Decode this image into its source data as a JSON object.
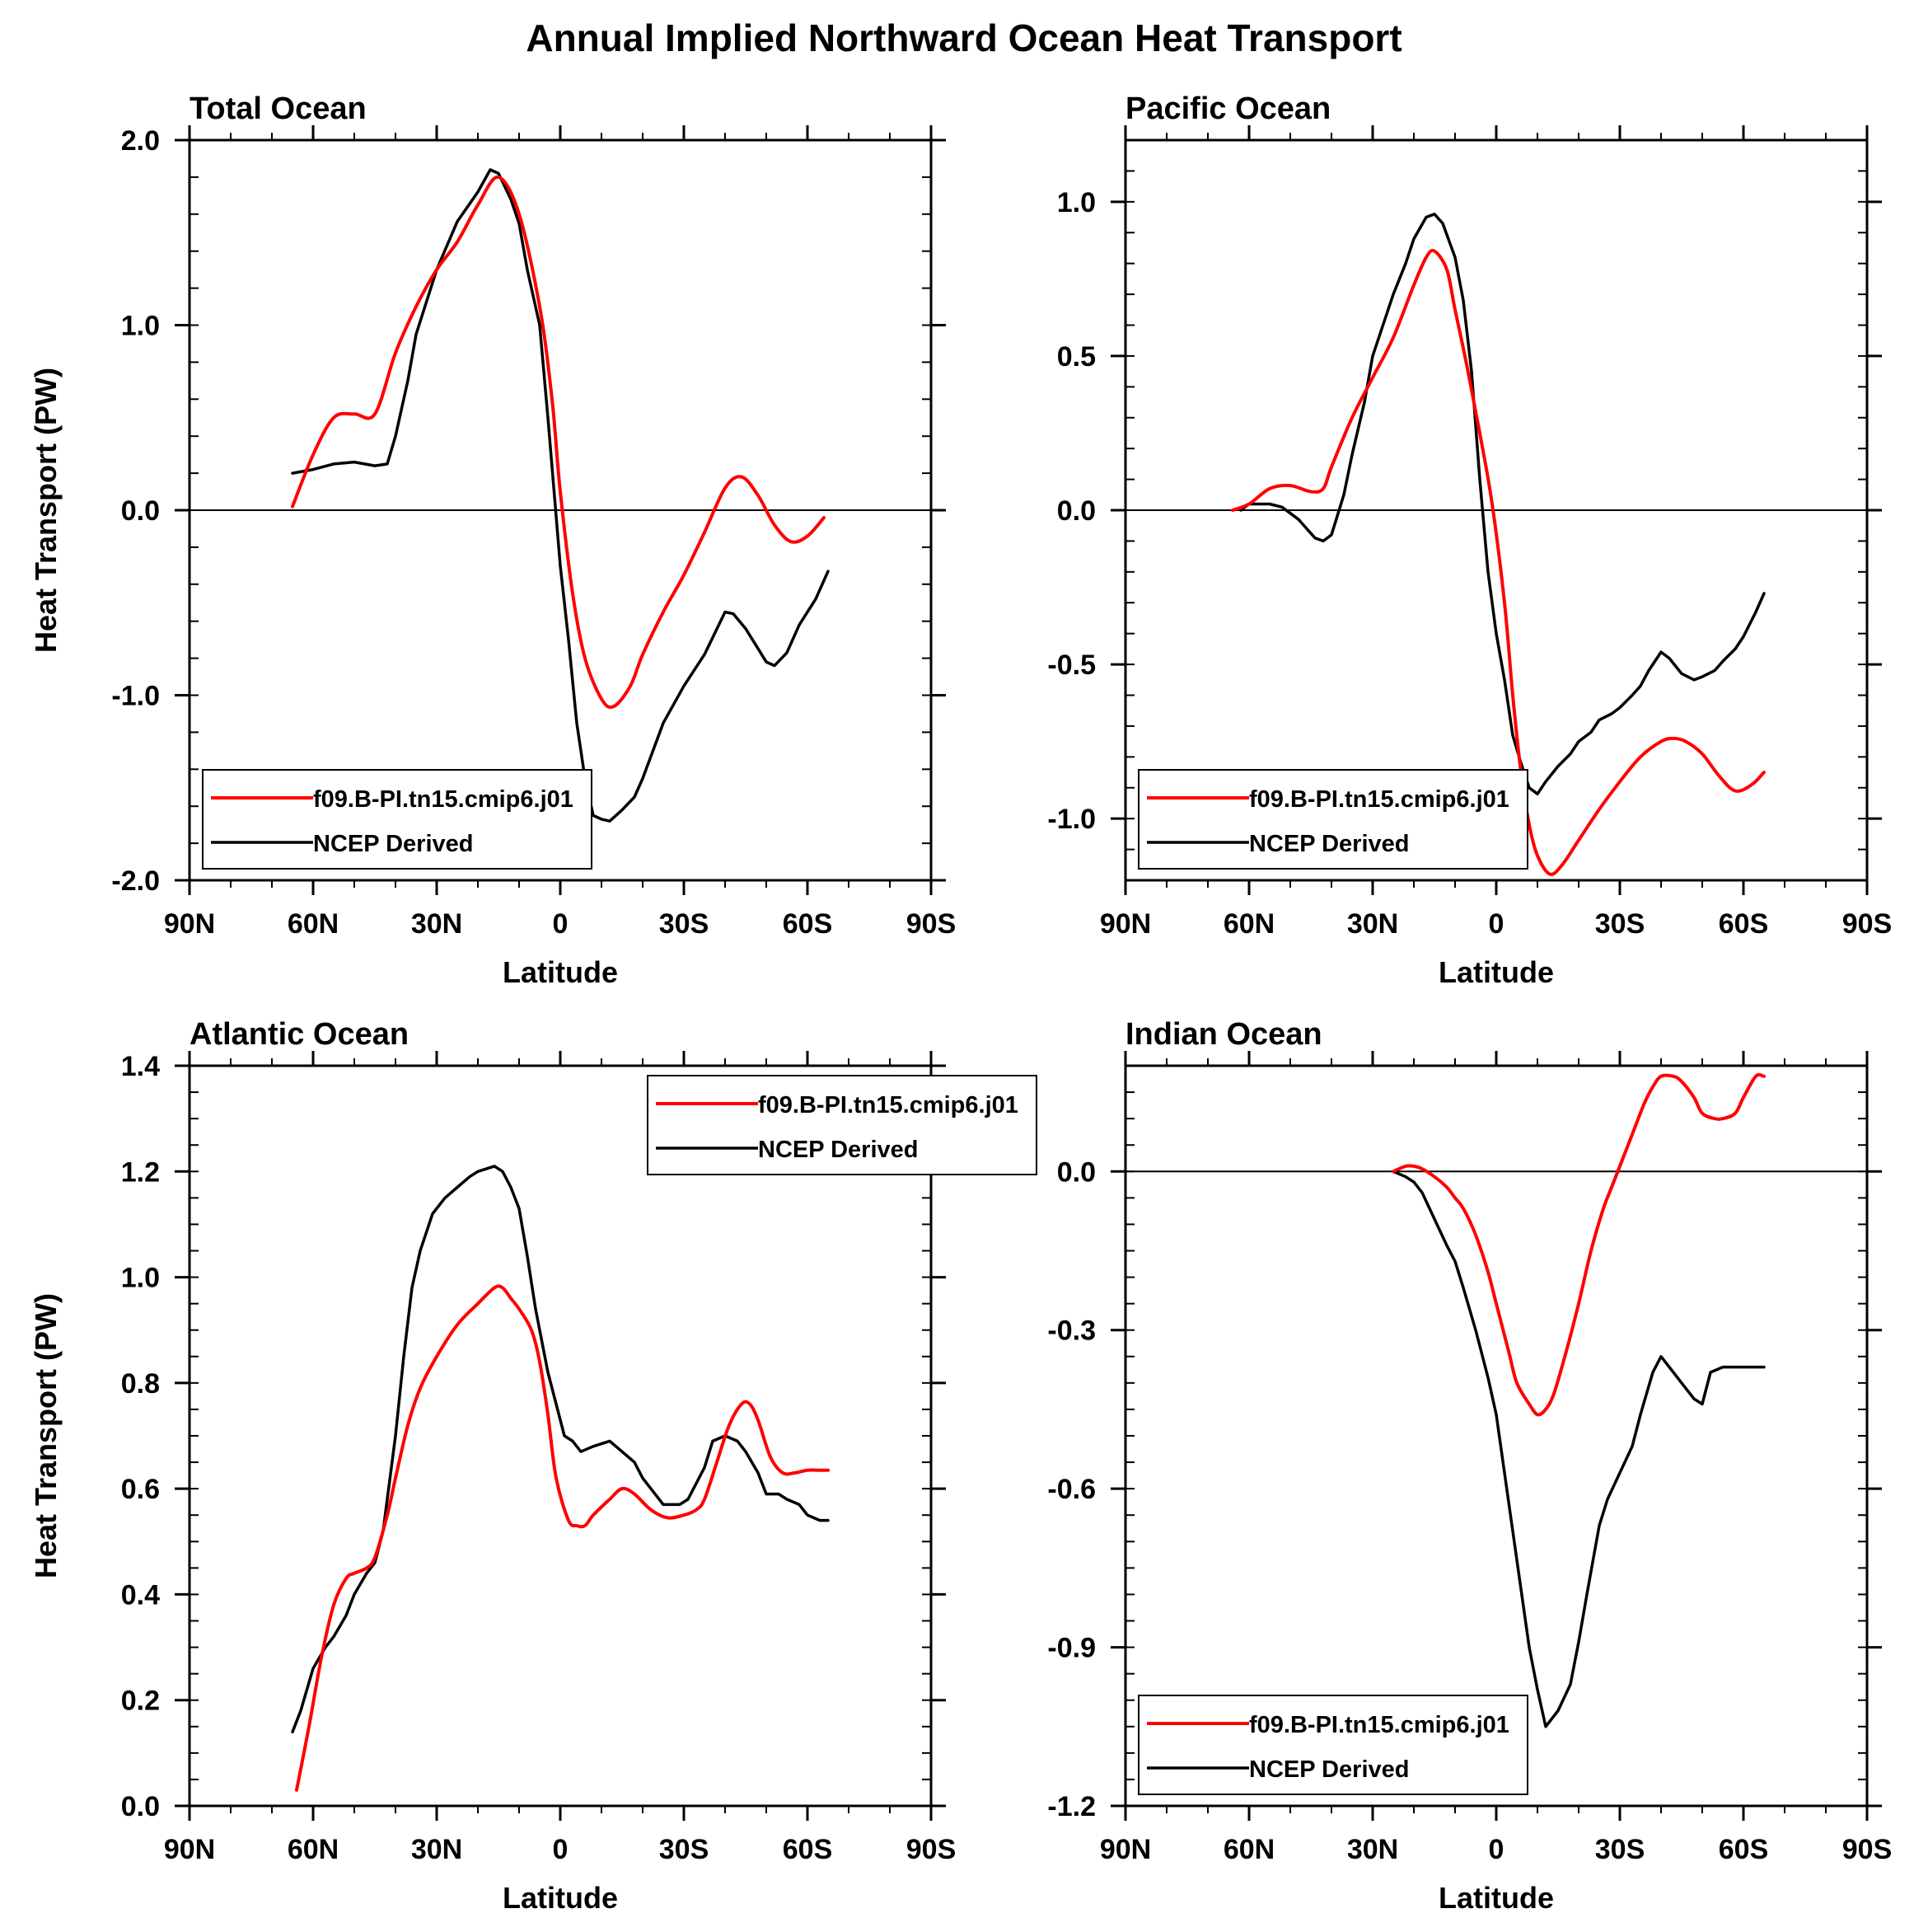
{
  "title": "Annual Implied Northward Ocean Heat Transport",
  "colors": {
    "model": "#ff0000",
    "obs": "#000000",
    "background": "#ffffff"
  },
  "chart_data": [
    {
      "type": "line",
      "title": "Total Ocean",
      "xlabel": "Latitude",
      "ylabel": "Heat Transport (PW)",
      "xlim": [
        90,
        -90
      ],
      "x_ticks": [
        90,
        60,
        30,
        0,
        -30,
        -60,
        -90
      ],
      "x_tick_labels": [
        "90N",
        "60N",
        "30N",
        "0",
        "30S",
        "60S",
        "90S"
      ],
      "ylim": [
        -2.0,
        2.0
      ],
      "y_ticks": [
        -2.0,
        -1.0,
        0.0,
        1.0,
        2.0
      ],
      "y_tick_labels": [
        "-2.0",
        "-1.0",
        "0.0",
        "1.0",
        "2.0"
      ],
      "y_minor_step": 0.2,
      "zero_line": true,
      "legend": {
        "position": "bottom-left"
      },
      "series": [
        {
          "name": "f09.B-PI.tn15.cmip6.j01",
          "color": "#ff0000",
          "smooth": true,
          "x": [
            65,
            60,
            55,
            50,
            45,
            40,
            35,
            30,
            25,
            20,
            15,
            10,
            5,
            2,
            0,
            -3,
            -6,
            -10,
            -13,
            -17,
            -20,
            -25,
            -30,
            -35,
            -40,
            -44,
            -48,
            -52,
            -56,
            -60,
            -64
          ],
          "y": [
            0.02,
            0.3,
            0.5,
            0.52,
            0.52,
            0.85,
            1.1,
            1.3,
            1.45,
            1.65,
            1.8,
            1.6,
            1.1,
            0.6,
            0.1,
            -0.45,
            -0.8,
            -1.02,
            -1.06,
            -0.95,
            -0.78,
            -0.55,
            -0.35,
            -0.12,
            0.12,
            0.18,
            0.08,
            -0.08,
            -0.17,
            -0.14,
            -0.04
          ]
        },
        {
          "name": "NCEP Derived",
          "color": "#000000",
          "smooth": false,
          "x": [
            65,
            60,
            55,
            50,
            45,
            42,
            40,
            37,
            35,
            30,
            25,
            20,
            17,
            15,
            12,
            10,
            8,
            5,
            3,
            0,
            -2,
            -4,
            -6,
            -8,
            -10,
            -12,
            -15,
            -18,
            -20,
            -25,
            -30,
            -35,
            -40,
            -42,
            -45,
            -50,
            -52,
            -55,
            -58,
            -62,
            -65
          ],
          "y": [
            0.2,
            0.22,
            0.25,
            0.26,
            0.24,
            0.25,
            0.4,
            0.7,
            0.95,
            1.3,
            1.56,
            1.72,
            1.84,
            1.82,
            1.68,
            1.55,
            1.3,
            1.0,
            0.5,
            -0.3,
            -0.7,
            -1.15,
            -1.45,
            -1.65,
            -1.67,
            -1.68,
            -1.62,
            -1.55,
            -1.45,
            -1.15,
            -0.95,
            -0.78,
            -0.55,
            -0.56,
            -0.64,
            -0.82,
            -0.84,
            -0.77,
            -0.62,
            -0.48,
            -0.33
          ]
        }
      ]
    },
    {
      "type": "line",
      "title": "Pacific Ocean",
      "xlabel": "Latitude",
      "ylabel": "",
      "xlim": [
        90,
        -90
      ],
      "x_ticks": [
        90,
        60,
        30,
        0,
        -30,
        -60,
        -90
      ],
      "x_tick_labels": [
        "90N",
        "60N",
        "30N",
        "0",
        "30S",
        "60S",
        "90S"
      ],
      "ylim": [
        -1.2,
        1.2
      ],
      "y_ticks": [
        -1.0,
        -0.5,
        0.0,
        0.5,
        1.0
      ],
      "y_tick_labels": [
        "-1.0",
        "-0.5",
        "0.0",
        "0.5",
        "1.0"
      ],
      "y_minor_step": 0.1,
      "zero_line": true,
      "legend": {
        "position": "bottom-left"
      },
      "series": [
        {
          "name": "f09.B-PI.tn15.cmip6.j01",
          "color": "#ff0000",
          "smooth": true,
          "x": [
            64,
            60,
            55,
            50,
            45,
            42,
            40,
            35,
            30,
            25,
            20,
            17,
            15,
            12,
            10,
            7,
            4,
            1,
            -2,
            -4,
            -6,
            -8,
            -10,
            -13,
            -16,
            -20,
            -25,
            -30,
            -35,
            -40,
            -43,
            -46,
            -50,
            -54,
            -58,
            -62,
            -65
          ],
          "y": [
            0.0,
            0.02,
            0.07,
            0.08,
            0.06,
            0.07,
            0.14,
            0.3,
            0.43,
            0.56,
            0.73,
            0.82,
            0.84,
            0.78,
            0.65,
            0.46,
            0.25,
            0.02,
            -0.3,
            -0.6,
            -0.85,
            -1.02,
            -1.12,
            -1.18,
            -1.15,
            -1.07,
            -0.97,
            -0.88,
            -0.8,
            -0.75,
            -0.74,
            -0.75,
            -0.79,
            -0.86,
            -0.91,
            -0.89,
            -0.85
          ]
        },
        {
          "name": "NCEP Derived",
          "color": "#000000",
          "smooth": false,
          "x": [
            62,
            60,
            57,
            55,
            52,
            50,
            48,
            46,
            44,
            42,
            40,
            37,
            35,
            32,
            30,
            27,
            25,
            22,
            20,
            17,
            15,
            13,
            10,
            8,
            6,
            4,
            2,
            0,
            -2,
            -4,
            -6,
            -8,
            -10,
            -12,
            -15,
            -18,
            -20,
            -23,
            -25,
            -28,
            -30,
            -33,
            -35,
            -37,
            -40,
            -42,
            -45,
            -48,
            -50,
            -53,
            -55,
            -58,
            -60,
            -63,
            -65
          ],
          "y": [
            0.0,
            0.02,
            0.02,
            0.02,
            0.01,
            -0.01,
            -0.03,
            -0.06,
            -0.09,
            -0.1,
            -0.08,
            0.05,
            0.18,
            0.35,
            0.5,
            0.62,
            0.7,
            0.8,
            0.88,
            0.95,
            0.96,
            0.93,
            0.82,
            0.68,
            0.45,
            0.1,
            -0.2,
            -0.4,
            -0.55,
            -0.73,
            -0.82,
            -0.9,
            -0.92,
            -0.88,
            -0.83,
            -0.79,
            -0.75,
            -0.72,
            -0.68,
            -0.66,
            -0.64,
            -0.6,
            -0.57,
            -0.52,
            -0.46,
            -0.48,
            -0.53,
            -0.55,
            -0.54,
            -0.52,
            -0.49,
            -0.45,
            -0.41,
            -0.33,
            -0.27
          ]
        }
      ]
    },
    {
      "type": "line",
      "title": "Atlantic Ocean",
      "xlabel": "Latitude",
      "ylabel": "Heat Transport (PW)",
      "xlim": [
        90,
        -90
      ],
      "x_ticks": [
        90,
        60,
        30,
        0,
        -30,
        -60,
        -90
      ],
      "x_tick_labels": [
        "90N",
        "60N",
        "30N",
        "0",
        "30S",
        "60S",
        "90S"
      ],
      "ylim": [
        0.0,
        1.4
      ],
      "y_ticks": [
        0.0,
        0.2,
        0.4,
        0.6,
        0.8,
        1.0,
        1.2,
        1.4
      ],
      "y_tick_labels": [
        "0.0",
        "0.2",
        "0.4",
        "0.6",
        "0.8",
        "1.0",
        "1.2",
        "1.4"
      ],
      "y_minor_step": 0.05,
      "zero_line": false,
      "legend": {
        "position": "top-right"
      },
      "series": [
        {
          "name": "f09.B-PI.tn15.cmip6.j01",
          "color": "#ff0000",
          "smooth": true,
          "x": [
            64,
            61,
            58,
            55,
            52,
            50,
            47,
            45,
            42,
            40,
            37,
            34,
            30,
            25,
            20,
            16,
            14,
            12,
            10,
            7,
            5,
            3,
            1,
            -2,
            -4,
            -6,
            -8,
            -12,
            -15,
            -18,
            -22,
            -26,
            -30,
            -33,
            -35,
            -38,
            -41,
            -44,
            -46,
            -48,
            -51,
            -54,
            -57,
            -60,
            -63,
            -65
          ],
          "y": [
            0.03,
            0.15,
            0.28,
            0.38,
            0.43,
            0.44,
            0.45,
            0.47,
            0.55,
            0.62,
            0.72,
            0.79,
            0.85,
            0.91,
            0.95,
            0.98,
            0.98,
            0.96,
            0.94,
            0.9,
            0.84,
            0.74,
            0.62,
            0.54,
            0.53,
            0.53,
            0.55,
            0.58,
            0.6,
            0.59,
            0.56,
            0.545,
            0.55,
            0.56,
            0.58,
            0.65,
            0.72,
            0.76,
            0.76,
            0.73,
            0.66,
            0.63,
            0.63,
            0.635,
            0.635,
            0.635
          ]
        },
        {
          "name": "NCEP Derived",
          "color": "#000000",
          "smooth": false,
          "x": [
            65,
            63,
            60,
            57,
            55,
            52,
            50,
            47,
            45,
            43,
            40,
            38,
            36,
            34,
            31,
            28,
            25,
            22,
            20,
            16,
            14,
            12,
            10,
            8,
            6,
            3,
            1,
            -1,
            -3,
            -5,
            -8,
            -12,
            -15,
            -18,
            -20,
            -23,
            -25,
            -27,
            -29,
            -31,
            -35,
            -37,
            -40,
            -43,
            -45,
            -48,
            -50,
            -53,
            -55,
            -58,
            -60,
            -63,
            -65
          ],
          "y": [
            0.14,
            0.18,
            0.26,
            0.3,
            0.32,
            0.36,
            0.4,
            0.44,
            0.46,
            0.52,
            0.7,
            0.85,
            0.98,
            1.05,
            1.12,
            1.15,
            1.17,
            1.19,
            1.2,
            1.21,
            1.2,
            1.17,
            1.13,
            1.04,
            0.94,
            0.82,
            0.76,
            0.7,
            0.69,
            0.67,
            0.68,
            0.69,
            0.67,
            0.65,
            0.62,
            0.59,
            0.57,
            0.57,
            0.57,
            0.58,
            0.64,
            0.69,
            0.7,
            0.69,
            0.67,
            0.63,
            0.59,
            0.59,
            0.58,
            0.57,
            0.55,
            0.54,
            0.54
          ]
        }
      ]
    },
    {
      "type": "line",
      "title": "Indian Ocean",
      "xlabel": "Latitude",
      "ylabel": "",
      "xlim": [
        90,
        -90
      ],
      "x_ticks": [
        90,
        60,
        30,
        0,
        -30,
        -60,
        -90
      ],
      "x_tick_labels": [
        "90N",
        "60N",
        "30N",
        "0",
        "30S",
        "60S",
        "90S"
      ],
      "ylim": [
        -1.2,
        0.2
      ],
      "y_ticks": [
        -1.2,
        -0.9,
        -0.6,
        -0.3,
        0.0
      ],
      "y_tick_labels": [
        "-1.2",
        "-0.9",
        "-0.6",
        "-0.3",
        "0.0"
      ],
      "y_minor_step": 0.05,
      "zero_line": true,
      "legend": {
        "position": "bottom-left"
      },
      "series": [
        {
          "name": "f09.B-PI.tn15.cmip6.j01",
          "color": "#ff0000",
          "smooth": true,
          "x": [
            25,
            22,
            20,
            18,
            15,
            12,
            10,
            8,
            5,
            2,
            0,
            -3,
            -5,
            -8,
            -10,
            -12,
            -14,
            -17,
            -20,
            -23,
            -26,
            -28,
            -30,
            -33,
            -36,
            -38,
            -40,
            -43,
            -45,
            -48,
            -50,
            -53,
            -55,
            -58,
            -60,
            -63,
            -65
          ],
          "y": [
            0.0,
            0.01,
            0.01,
            0.005,
            -0.01,
            -0.03,
            -0.05,
            -0.07,
            -0.12,
            -0.19,
            -0.25,
            -0.34,
            -0.4,
            -0.44,
            -0.46,
            -0.45,
            -0.42,
            -0.34,
            -0.25,
            -0.15,
            -0.07,
            -0.03,
            0.01,
            0.07,
            0.13,
            0.16,
            0.18,
            0.18,
            0.17,
            0.14,
            0.11,
            0.1,
            0.1,
            0.11,
            0.14,
            0.18,
            0.18
          ]
        },
        {
          "name": "NCEP Derived",
          "color": "#000000",
          "smooth": false,
          "x": [
            25,
            22,
            20,
            18,
            15,
            12,
            10,
            8,
            5,
            2,
            0,
            -2,
            -4,
            -6,
            -8,
            -10,
            -12,
            -15,
            -18,
            -20,
            -22,
            -25,
            -27,
            -30,
            -33,
            -35,
            -38,
            -40,
            -43,
            -45,
            -48,
            -50,
            -52,
            -55,
            -57,
            -60,
            -63,
            -65
          ],
          "y": [
            0.0,
            -0.01,
            -0.02,
            -0.04,
            -0.09,
            -0.14,
            -0.17,
            -0.22,
            -0.3,
            -0.39,
            -0.46,
            -0.57,
            -0.68,
            -0.79,
            -0.9,
            -0.98,
            -1.05,
            -1.02,
            -0.97,
            -0.89,
            -0.8,
            -0.67,
            -0.62,
            -0.57,
            -0.52,
            -0.46,
            -0.38,
            -0.35,
            -0.38,
            -0.4,
            -0.43,
            -0.44,
            -0.38,
            -0.37,
            -0.37,
            -0.37,
            -0.37,
            -0.37
          ]
        }
      ]
    }
  ]
}
